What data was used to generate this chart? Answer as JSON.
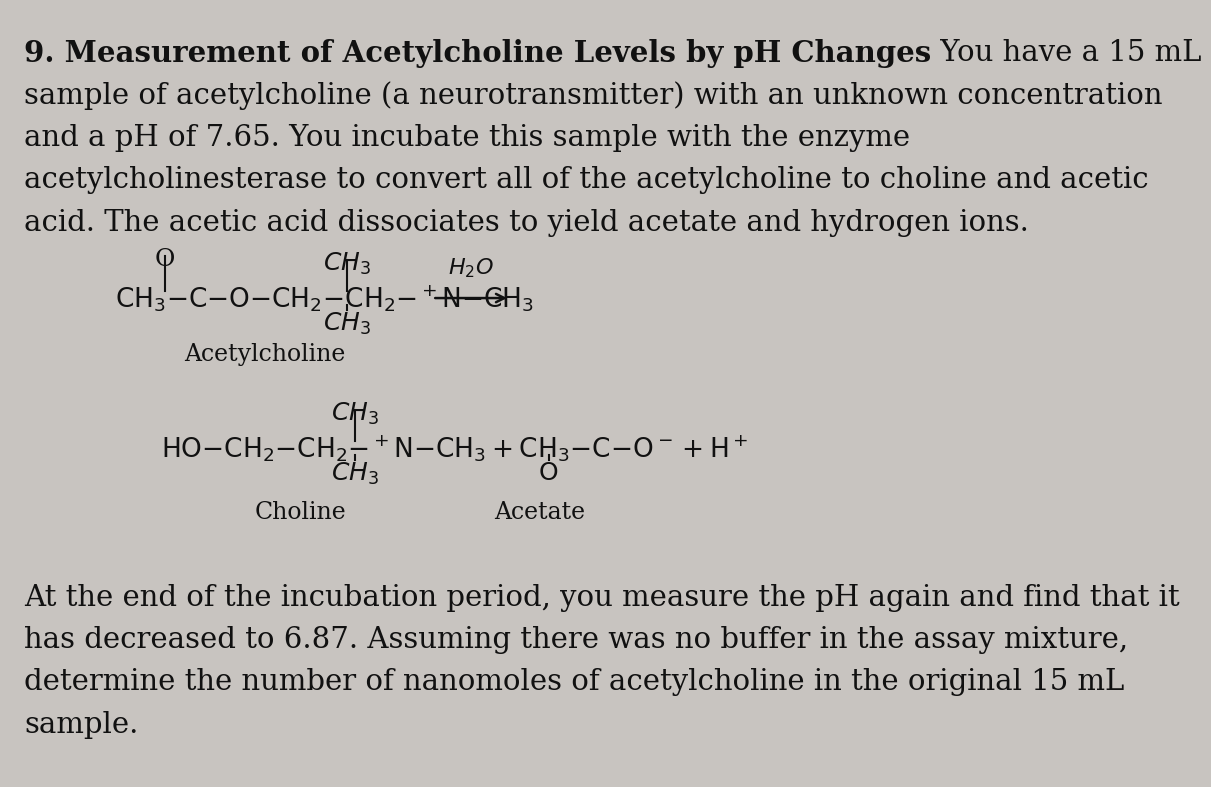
{
  "bg_color": "#c8c4c0",
  "text_color": "#111111",
  "title_bold": "9. Measurement of Acetylcholine Levels by pH Changes",
  "title_normal": " You have a 15 mL",
  "body_lines": [
    "sample of acetylcholine (a neurotransmitter) with an unknown concentration",
    "and a pH of 7.65. You incubate this sample with the enzyme",
    "acetylcholinesterase to convert all of the acetylcholine to choline and acetic",
    "acid. The acetic acid dissociates to yield acetate and hydrogen ions."
  ],
  "footer_lines": [
    "At the end of the incubation period, you measure the pH again and find that it",
    "has decreased to 6.87. Assuming there was no buffer in the assay mixture,",
    "determine the number of nanomoles of acetylcholine in the original 15 mL",
    "sample."
  ],
  "font_size_body": 21,
  "font_size_chem": 18,
  "font_size_label": 17
}
